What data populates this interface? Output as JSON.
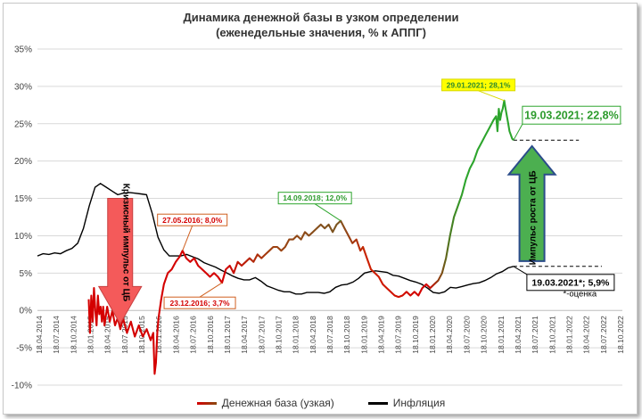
{
  "chart_data": {
    "type": "line",
    "title": "Динамика денежной базы в узком определении",
    "subtitle": "(еженедельные значения, % к АППГ)",
    "ylim": [
      -10,
      35
    ],
    "yticks": [
      -10,
      -5,
      0,
      5,
      10,
      15,
      20,
      25,
      30,
      35
    ],
    "ytick_labels": [
      "-10%",
      "-5%",
      "0%",
      "5%",
      "10%",
      "15%",
      "20%",
      "25%",
      "30%",
      "35%"
    ],
    "xlim": [
      "2014-04-18",
      "2022-10-18"
    ],
    "xtick_labels": [
      "18.04.2014",
      "18.07.2014",
      "18.10.2014",
      "18.01.2015",
      "18.04.2015",
      "18.07.2015",
      "18.10.2015",
      "18.01.2016",
      "18.04.2016",
      "18.07.2016",
      "18.10.2016",
      "18.01.2017",
      "18.04.2017",
      "18.07.2017",
      "18.10.2017",
      "18.01.2018",
      "18.04.2018",
      "18.07.2018",
      "18.10.2018",
      "18.01.2019",
      "18.04.2019",
      "18.07.2019",
      "18.10.2019",
      "18.01.2020",
      "18.04.2020",
      "18.07.2020",
      "18.10.2020",
      "18.01.2021",
      "18.04.2021",
      "18.07.2021",
      "18.10.2021",
      "18.01.2022",
      "18.04.2022",
      "18.07.2022",
      "18.10.2022"
    ],
    "grid": true,
    "legend_position": "bottom",
    "series": [
      {
        "name": "Денежная база (узкая)",
        "color": "#d40000",
        "points": [
          [
            "2015-01-15",
            1.5
          ],
          [
            "2015-01-22",
            -3.0
          ],
          [
            "2015-01-29",
            2.0
          ],
          [
            "2015-02-05",
            -1.5
          ],
          [
            "2015-02-12",
            3.0
          ],
          [
            "2015-02-19",
            0.0
          ],
          [
            "2015-02-26",
            -2.0
          ],
          [
            "2015-03-05",
            2.0
          ],
          [
            "2015-03-12",
            -0.5
          ],
          [
            "2015-03-19",
            0.5
          ],
          [
            "2015-03-26",
            -1.5
          ],
          [
            "2015-04-02",
            0.5
          ],
          [
            "2015-04-09",
            -2.0
          ],
          [
            "2015-04-23",
            0.5
          ],
          [
            "2015-05-07",
            -1.5
          ],
          [
            "2015-05-21",
            0.0
          ],
          [
            "2015-06-04",
            -2.0
          ],
          [
            "2015-06-18",
            -1.0
          ],
          [
            "2015-07-02",
            -2.5
          ],
          [
            "2015-07-16",
            -1.0
          ],
          [
            "2015-08-06",
            -3.0
          ],
          [
            "2015-08-27",
            -1.5
          ],
          [
            "2015-09-17",
            -3.5
          ],
          [
            "2015-10-08",
            -2.0
          ],
          [
            "2015-10-29",
            -3.5
          ],
          [
            "2015-11-19",
            -2.5
          ],
          [
            "2015-12-10",
            -4.0
          ],
          [
            "2015-12-24",
            -3.0
          ],
          [
            "2015-12-31",
            -8.5
          ],
          [
            "2016-01-07",
            -7.0
          ],
          [
            "2016-01-14",
            -3.0
          ],
          [
            "2016-01-21",
            -1.0
          ],
          [
            "2016-02-04",
            1.5
          ],
          [
            "2016-02-18",
            3.5
          ],
          [
            "2016-03-10",
            5.0
          ],
          [
            "2016-03-31",
            5.5
          ],
          [
            "2016-04-21",
            6.5
          ],
          [
            "2016-05-12",
            7.2
          ],
          [
            "2016-05-27",
            8.0
          ],
          [
            "2016-06-16",
            7.0
          ],
          [
            "2016-07-07",
            6.5
          ],
          [
            "2016-07-28",
            7.0
          ],
          [
            "2016-08-18",
            6.0
          ],
          [
            "2016-09-08",
            5.5
          ],
          [
            "2016-09-29",
            5.0
          ],
          [
            "2016-10-20",
            4.5
          ],
          [
            "2016-11-10",
            5.0
          ],
          [
            "2016-12-01",
            4.5
          ],
          [
            "2016-12-23",
            3.7
          ],
          [
            "2017-01-12",
            5.5
          ],
          [
            "2017-02-02",
            6.0
          ],
          [
            "2017-02-23",
            5.0
          ],
          [
            "2017-03-16",
            6.5
          ],
          [
            "2017-04-06",
            6.0
          ],
          [
            "2017-04-27",
            6.5
          ],
          [
            "2017-05-18",
            7.0
          ],
          [
            "2017-06-08",
            6.5
          ],
          [
            "2017-06-29",
            7.5
          ],
          [
            "2017-07-20",
            7.0
          ],
          [
            "2017-08-10",
            7.5
          ],
          [
            "2017-08-31",
            8.0
          ],
          [
            "2017-09-21",
            8.5
          ],
          [
            "2017-10-12",
            8.5
          ],
          [
            "2017-11-02",
            8.0
          ],
          [
            "2017-11-23",
            8.5
          ],
          [
            "2017-12-14",
            9.5
          ],
          [
            "2018-01-04",
            9.5
          ],
          [
            "2018-01-25",
            10.0
          ],
          [
            "2018-02-15",
            9.5
          ],
          [
            "2018-03-08",
            10.5
          ],
          [
            "2018-03-29",
            10.0
          ],
          [
            "2018-04-19",
            10.5
          ],
          [
            "2018-05-10",
            11.0
          ],
          [
            "2018-05-31",
            11.5
          ],
          [
            "2018-06-21",
            11.0
          ],
          [
            "2018-07-12",
            11.5
          ],
          [
            "2018-08-02",
            10.5
          ],
          [
            "2018-08-23",
            11.5
          ],
          [
            "2018-09-14",
            12.0
          ],
          [
            "2018-10-04",
            11.0
          ],
          [
            "2018-10-25",
            10.0
          ],
          [
            "2018-11-15",
            9.0
          ],
          [
            "2018-12-06",
            9.5
          ],
          [
            "2018-12-27",
            8.0
          ],
          [
            "2019-01-10",
            8.5
          ],
          [
            "2019-01-31",
            7.0
          ],
          [
            "2019-02-21",
            5.5
          ],
          [
            "2019-03-14",
            5.0
          ],
          [
            "2019-04-04",
            4.5
          ],
          [
            "2019-04-25",
            3.5
          ],
          [
            "2019-05-16",
            3.0
          ],
          [
            "2019-06-06",
            2.5
          ],
          [
            "2019-06-27",
            2.0
          ],
          [
            "2019-07-18",
            1.8
          ],
          [
            "2019-08-08",
            2.0
          ],
          [
            "2019-08-29",
            2.5
          ],
          [
            "2019-09-19",
            2.0
          ],
          [
            "2019-10-10",
            2.5
          ],
          [
            "2019-10-31",
            2.0
          ],
          [
            "2019-11-21",
            3.0
          ],
          [
            "2019-12-12",
            3.5
          ],
          [
            "2020-01-02",
            3.0
          ],
          [
            "2020-01-23",
            3.5
          ],
          [
            "2020-02-13",
            4.0
          ],
          [
            "2020-03-05",
            5.0
          ],
          [
            "2020-03-26",
            7.0
          ],
          [
            "2020-04-16",
            10.0
          ],
          [
            "2020-05-07",
            12.5
          ],
          [
            "2020-05-28",
            14.0
          ],
          [
            "2020-06-18",
            15.5
          ],
          [
            "2020-07-09",
            17.5
          ],
          [
            "2020-07-30",
            19.0
          ],
          [
            "2020-08-20",
            20.0
          ],
          [
            "2020-09-10",
            21.5
          ],
          [
            "2020-10-01",
            22.5
          ],
          [
            "2020-10-22",
            23.5
          ],
          [
            "2020-11-12",
            24.5
          ],
          [
            "2020-12-03",
            25.5
          ],
          [
            "2020-12-17",
            26.0
          ],
          [
            "2020-12-24",
            24.0
          ],
          [
            "2020-12-31",
            27.0
          ],
          [
            "2021-01-07",
            25.5
          ],
          [
            "2021-01-14",
            26.5
          ],
          [
            "2021-01-21",
            27.0
          ],
          [
            "2021-01-29",
            28.1
          ],
          [
            "2021-02-05",
            27.0
          ],
          [
            "2021-02-12",
            26.0
          ],
          [
            "2021-02-19",
            25.0
          ],
          [
            "2021-02-26",
            24.0
          ],
          [
            "2021-03-05",
            23.5
          ],
          [
            "2021-03-12",
            23.0
          ],
          [
            "2021-03-19",
            22.8
          ]
        ]
      },
      {
        "name": "Инфляция",
        "color": "#000000",
        "points": [
          [
            "2014-04-18",
            7.3
          ],
          [
            "2014-05-18",
            7.6
          ],
          [
            "2014-06-18",
            7.5
          ],
          [
            "2014-07-18",
            7.7
          ],
          [
            "2014-08-18",
            7.6
          ],
          [
            "2014-09-18",
            8.0
          ],
          [
            "2014-10-18",
            8.3
          ],
          [
            "2014-11-18",
            9.0
          ],
          [
            "2014-12-18",
            11.0
          ],
          [
            "2015-01-18",
            14.0
          ],
          [
            "2015-02-18",
            16.5
          ],
          [
            "2015-03-18",
            17.0
          ],
          [
            "2015-04-18",
            16.5
          ],
          [
            "2015-05-18",
            16.0
          ],
          [
            "2015-06-18",
            15.5
          ],
          [
            "2015-07-18",
            15.7
          ],
          [
            "2015-08-18",
            15.8
          ],
          [
            "2015-09-18",
            15.7
          ],
          [
            "2015-10-18",
            15.6
          ],
          [
            "2015-11-18",
            15.5
          ],
          [
            "2015-12-18",
            13.0
          ],
          [
            "2016-01-18",
            9.8
          ],
          [
            "2016-02-18",
            8.1
          ],
          [
            "2016-03-18",
            7.3
          ],
          [
            "2016-04-18",
            7.3
          ],
          [
            "2016-05-18",
            7.3
          ],
          [
            "2016-06-18",
            7.5
          ],
          [
            "2016-07-18",
            7.2
          ],
          [
            "2016-08-18",
            6.9
          ],
          [
            "2016-09-18",
            6.4
          ],
          [
            "2016-10-18",
            6.1
          ],
          [
            "2016-11-18",
            5.8
          ],
          [
            "2016-12-18",
            5.4
          ],
          [
            "2017-01-18",
            5.0
          ],
          [
            "2017-02-18",
            4.6
          ],
          [
            "2017-03-18",
            4.3
          ],
          [
            "2017-04-18",
            4.1
          ],
          [
            "2017-05-18",
            4.1
          ],
          [
            "2017-06-18",
            4.4
          ],
          [
            "2017-07-18",
            3.9
          ],
          [
            "2017-08-18",
            3.3
          ],
          [
            "2017-09-18",
            3.0
          ],
          [
            "2017-10-18",
            2.7
          ],
          [
            "2017-11-18",
            2.5
          ],
          [
            "2017-12-18",
            2.5
          ],
          [
            "2018-01-18",
            2.2
          ],
          [
            "2018-02-18",
            2.2
          ],
          [
            "2018-03-18",
            2.4
          ],
          [
            "2018-04-18",
            2.4
          ],
          [
            "2018-05-18",
            2.4
          ],
          [
            "2018-06-18",
            2.3
          ],
          [
            "2018-07-18",
            2.5
          ],
          [
            "2018-08-18",
            3.1
          ],
          [
            "2018-09-18",
            3.4
          ],
          [
            "2018-10-18",
            3.5
          ],
          [
            "2018-11-18",
            3.8
          ],
          [
            "2018-12-18",
            4.3
          ],
          [
            "2019-01-18",
            5.0
          ],
          [
            "2019-02-18",
            5.2
          ],
          [
            "2019-03-18",
            5.3
          ],
          [
            "2019-04-18",
            5.2
          ],
          [
            "2019-05-18",
            5.1
          ],
          [
            "2019-06-18",
            4.7
          ],
          [
            "2019-07-18",
            4.6
          ],
          [
            "2019-08-18",
            4.3
          ],
          [
            "2019-09-18",
            4.0
          ],
          [
            "2019-10-18",
            3.8
          ],
          [
            "2019-11-18",
            3.5
          ],
          [
            "2019-12-18",
            3.0
          ],
          [
            "2020-01-18",
            2.4
          ],
          [
            "2020-02-18",
            2.3
          ],
          [
            "2020-03-18",
            2.5
          ],
          [
            "2020-04-18",
            3.1
          ],
          [
            "2020-05-18",
            3.0
          ],
          [
            "2020-06-18",
            3.2
          ],
          [
            "2020-07-18",
            3.4
          ],
          [
            "2020-08-18",
            3.6
          ],
          [
            "2020-09-18",
            3.7
          ],
          [
            "2020-10-18",
            4.0
          ],
          [
            "2020-11-18",
            4.4
          ],
          [
            "2020-12-18",
            4.9
          ],
          [
            "2021-01-18",
            5.2
          ],
          [
            "2021-02-18",
            5.7
          ],
          [
            "2021-03-19",
            5.9
          ]
        ]
      }
    ],
    "annotations": [
      {
        "text": "29.01.2021; 28,1%",
        "x": "2021-01-29",
        "y": 28.1,
        "fill": "#ffff00",
        "border": "#d9d900",
        "color": "#2d8a2d"
      },
      {
        "text": "19.03.2021; 22,8%",
        "x": "2021-03-19",
        "y": 22.8,
        "fill": "#ffffff",
        "border": "#2da52d",
        "color": "#2d9b2d"
      },
      {
        "text": "14.09.2018; 12,0%",
        "x": "2018-09-14",
        "y": 12.0,
        "fill": "#ffffff",
        "border": "#2da52d",
        "color": "#2d9b2d"
      },
      {
        "text": "27.05.2016; 8,0%",
        "x": "2016-05-27",
        "y": 8.0,
        "fill": "#ffffff",
        "border": "#d06020",
        "color": "#d40000"
      },
      {
        "text": "23.12.2016; 3,7%",
        "x": "2016-12-23",
        "y": 3.7,
        "fill": "#ffffff",
        "border": "#d06020",
        "color": "#d40000"
      },
      {
        "text": "19.03.2021*; 5,9%",
        "x": "2021-03-19",
        "y": 5.9,
        "fill": "#ffffff",
        "border": "#000000",
        "color": "#000000"
      }
    ],
    "arrow_labels": {
      "crisis": "Кризисный импульс от ЦБ",
      "growth": "Импульс роста от ЦБ"
    },
    "footnote": "*-оценка"
  }
}
